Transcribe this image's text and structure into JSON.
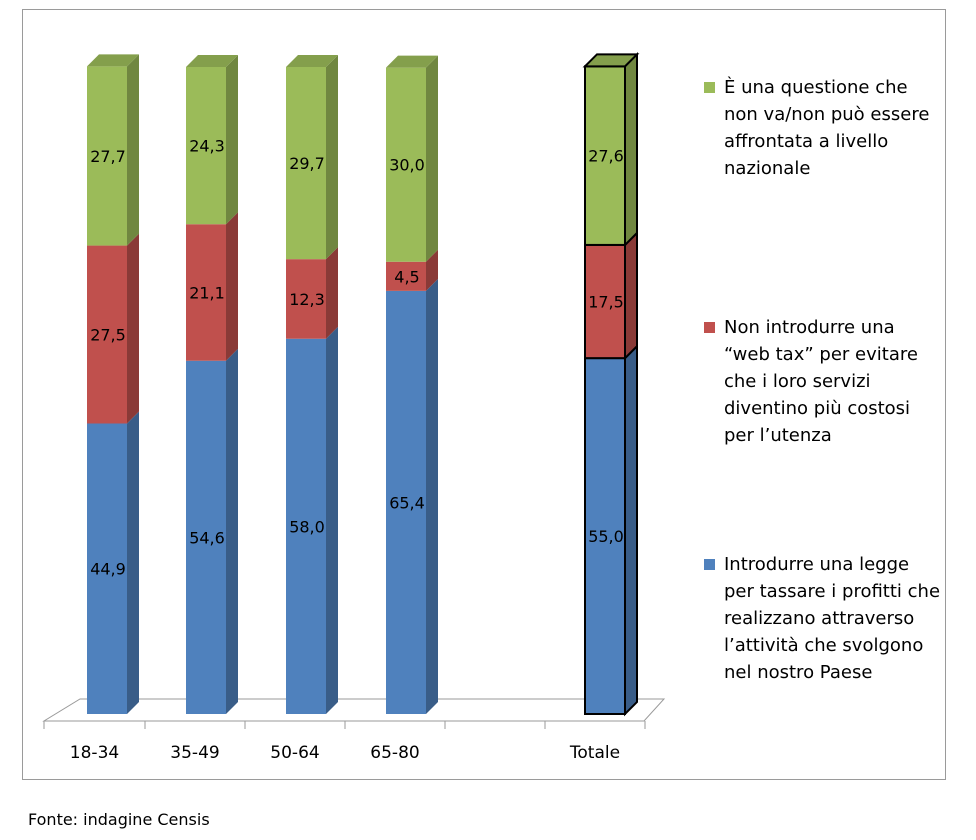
{
  "chart_data": {
    "type": "bar",
    "stacked": true,
    "three_d": true,
    "categories": [
      "18-34",
      "35-49",
      "50-64",
      "65-80",
      "Totale"
    ],
    "series": [
      {
        "name": "Introdurre una legge per tassare i profitti che realizzano attraverso l’attività che svolgono nel nostro Paese",
        "color": "#4f81bd",
        "values": [
          44.9,
          54.6,
          58.0,
          65.4,
          55.0
        ],
        "labels": [
          "44,9",
          "54,6",
          "58,0",
          "65,4",
          "55,0"
        ]
      },
      {
        "name": "Non introdurre una “web tax” per evitare che i loro servizi diventino più costosi per l’utenza",
        "color": "#c0504d",
        "values": [
          27.5,
          21.1,
          12.3,
          4.5,
          17.5
        ],
        "labels": [
          "27,5",
          "21,1",
          "12,3",
          "4,5",
          "17,5"
        ]
      },
      {
        "name": "È una questione che non va/non può essere affrontata a livello nazionale",
        "color": "#9bbb59",
        "values": [
          27.7,
          24.3,
          29.7,
          30.0,
          27.6
        ],
        "labels": [
          "27,7",
          "24,3",
          "29,7",
          "30,0",
          "27,6"
        ]
      }
    ],
    "ylim": [
      0,
      100
    ],
    "grid": false,
    "legend_position": "right",
    "highlighted_category": "Totale"
  },
  "legend": {
    "item_green": "È una questione che non va/non può essere affrontata a livello nazionale",
    "item_red": "Non introdurre una “web tax” per evitare che i loro servizi diventino più costosi per l’utenza",
    "item_blue": "Introdurre una legge per tassare i profitti che realizzano attraverso l’attività che svolgono nel nostro Paese"
  },
  "source_note": "Fonte: indagine Censis"
}
